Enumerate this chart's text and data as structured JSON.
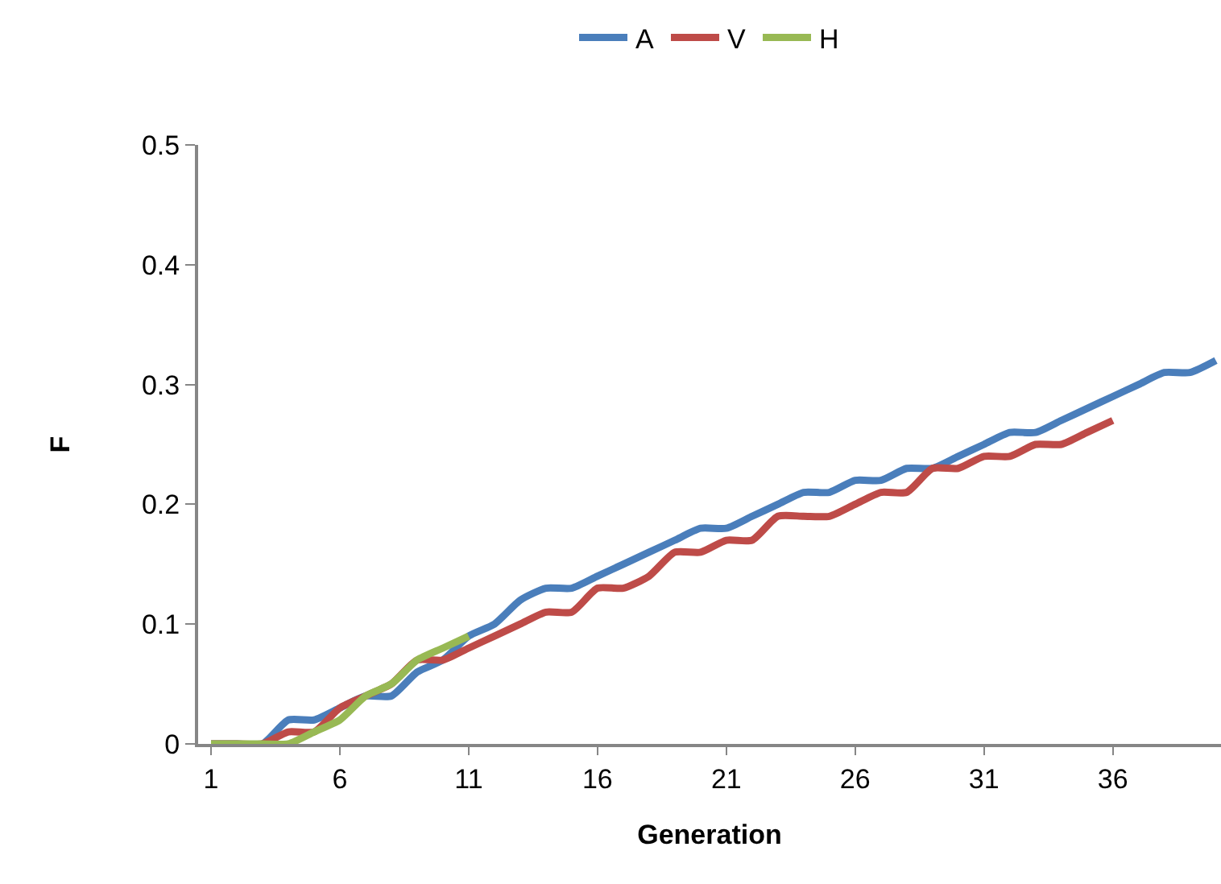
{
  "chart_data": {
    "type": "line",
    "xlabel": "Generation",
    "ylabel": "F",
    "x": [
      1,
      2,
      3,
      4,
      5,
      6,
      7,
      8,
      9,
      10,
      11,
      12,
      13,
      14,
      15,
      16,
      17,
      18,
      19,
      20,
      21,
      22,
      23,
      24,
      25,
      26,
      27,
      28,
      29,
      30,
      31,
      32,
      33,
      34,
      35,
      36,
      37,
      38,
      39,
      40
    ],
    "series": [
      {
        "name": "A",
        "color": "#4a7ebb",
        "values": [
          0,
          0,
          0,
          0.02,
          0.02,
          0.03,
          0.04,
          0.04,
          0.06,
          0.07,
          0.09,
          0.1,
          0.12,
          0.13,
          0.13,
          0.14,
          0.15,
          0.16,
          0.17,
          0.18,
          0.18,
          0.19,
          0.2,
          0.21,
          0.21,
          0.22,
          0.22,
          0.23,
          0.23,
          0.24,
          0.25,
          0.26,
          0.26,
          0.27,
          0.28,
          0.29,
          0.3,
          0.31,
          0.31,
          0.32
        ]
      },
      {
        "name": "V",
        "color": "#be4b48",
        "values": [
          0,
          0,
          0,
          0.01,
          0.01,
          0.03,
          0.04,
          0.05,
          0.07,
          0.07,
          0.08,
          0.09,
          0.1,
          0.11,
          0.11,
          0.13,
          0.13,
          0.14,
          0.16,
          0.16,
          0.17,
          0.17,
          0.19,
          0.19,
          0.19,
          0.2,
          0.21,
          0.21,
          0.23,
          0.23,
          0.24,
          0.24,
          0.25,
          0.25,
          0.26,
          0.27,
          null,
          null,
          null,
          null
        ]
      },
      {
        "name": "H",
        "color": "#98b954",
        "values": [
          0,
          0,
          0,
          0,
          0.01,
          0.02,
          0.04,
          0.05,
          0.07,
          0.08,
          0.09,
          null,
          null,
          null,
          null,
          null,
          null,
          null,
          null,
          null,
          null,
          null,
          null,
          null,
          null,
          null,
          null,
          null,
          null,
          null,
          null,
          null,
          null,
          null,
          null,
          null,
          null,
          null,
          null,
          null
        ]
      }
    ],
    "xlim": [
      0.5,
      40.2
    ],
    "xticks": [
      1,
      6,
      11,
      16,
      21,
      26,
      31,
      36
    ],
    "ylim": [
      0,
      0.5
    ],
    "yticks": [
      {
        "value": 0,
        "label": "0"
      },
      0.1,
      0.2,
      0.3,
      0.4,
      0.5
    ],
    "grid": false,
    "legend": "top",
    "marker": "none",
    "line_style": "solid"
  }
}
